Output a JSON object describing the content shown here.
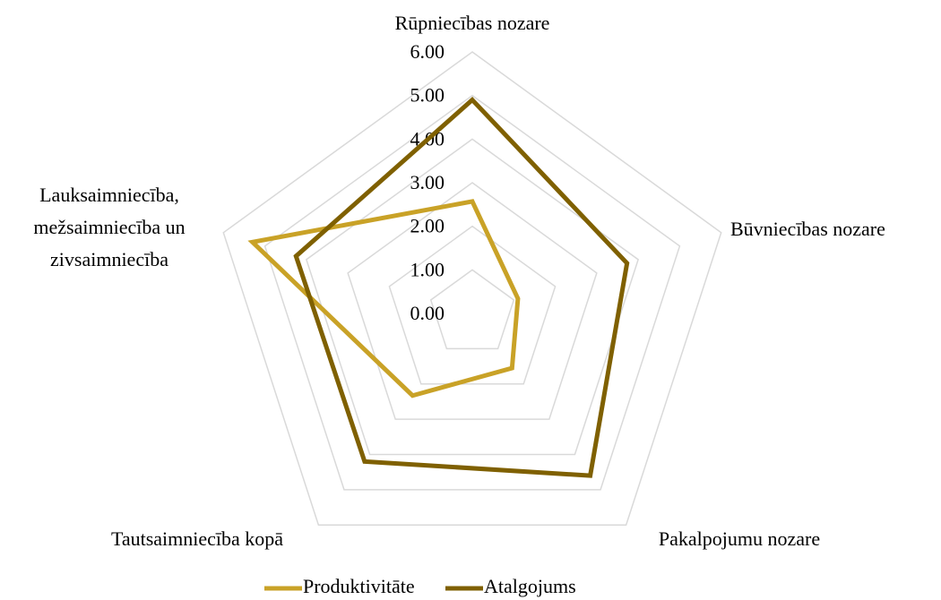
{
  "chart_data": {
    "type": "radar",
    "categories": [
      "Rūpniecības nozare",
      "Būvniecības nozare",
      "Pakalpojumu nozare",
      "Tautsaimniecība kopā",
      "Lauksaimniecība,\nmežsaimniecība un\nzivsaimniecība"
    ],
    "series": [
      {
        "name": "Produktivitāte",
        "color": "#c9a227",
        "values": [
          2.57,
          1.1,
          1.55,
          2.33,
          5.3
        ]
      },
      {
        "name": "Atalgojums",
        "color": "#7f6000",
        "values": [
          4.9,
          3.73,
          4.6,
          4.2,
          4.25
        ]
      }
    ],
    "ylim": [
      0,
      6
    ],
    "yticks": [
      {
        "value": 0,
        "label": "0.00"
      },
      {
        "value": 1,
        "label": "1.00"
      },
      {
        "value": 2,
        "label": "2.00"
      },
      {
        "value": 3,
        "label": "3.00"
      },
      {
        "value": 4,
        "label": "4.00"
      },
      {
        "value": 5,
        "label": "5.00"
      },
      {
        "value": 6,
        "label": "6.00"
      }
    ],
    "grid": true,
    "legend": "bottom"
  }
}
